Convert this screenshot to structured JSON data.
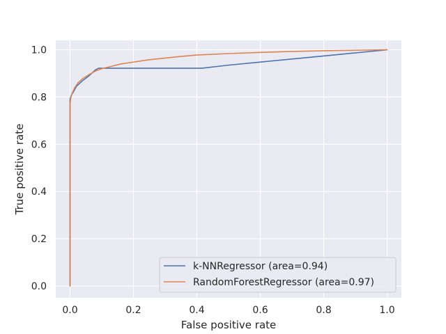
{
  "chart_data": {
    "type": "line",
    "title": "",
    "xlabel": "False positive rate",
    "ylabel": "True positive rate",
    "xlim": [
      -0.045,
      1.045
    ],
    "ylim": [
      -0.05,
      1.04
    ],
    "xticks": [
      0.0,
      0.2,
      0.4,
      0.6,
      0.8,
      1.0
    ],
    "yticks": [
      0.0,
      0.2,
      0.4,
      0.6,
      0.8,
      1.0
    ],
    "xtick_labels": [
      "0.0",
      "0.2",
      "0.4",
      "0.6",
      "0.8",
      "1.0"
    ],
    "ytick_labels": [
      "0.0",
      "0.2",
      "0.4",
      "0.6",
      "0.8",
      "1.0"
    ],
    "grid": true,
    "legend_position": "lower-right",
    "series": [
      {
        "name": "k-NNRegressor (area=0.94)",
        "color": "#4c72b0",
        "x": [
          0.0,
          0.0,
          0.002,
          0.005,
          0.01,
          0.02,
          0.04,
          0.06,
          0.08,
          0.09,
          0.12,
          0.2,
          0.3,
          0.415,
          0.5,
          0.6,
          0.7,
          0.8,
          0.9,
          1.0
        ],
        "y": [
          0.0,
          0.79,
          0.8,
          0.81,
          0.82,
          0.845,
          0.87,
          0.89,
          0.915,
          0.922,
          0.922,
          0.922,
          0.922,
          0.922,
          0.935,
          0.948,
          0.961,
          0.974,
          0.987,
          1.0
        ]
      },
      {
        "name": "RandomForestRegressor (area=0.97)",
        "color": "#dd8452",
        "x": [
          0.0,
          0.0,
          0.003,
          0.008,
          0.015,
          0.025,
          0.04,
          0.06,
          0.08,
          0.1,
          0.13,
          0.16,
          0.2,
          0.25,
          0.3,
          0.35,
          0.4,
          0.5,
          0.6,
          0.7,
          0.8,
          0.9,
          1.0
        ],
        "y": [
          0.0,
          0.77,
          0.8,
          0.82,
          0.84,
          0.86,
          0.878,
          0.895,
          0.91,
          0.92,
          0.93,
          0.94,
          0.948,
          0.958,
          0.965,
          0.972,
          0.978,
          0.984,
          0.989,
          0.993,
          0.996,
          0.998,
          1.0
        ]
      }
    ]
  }
}
